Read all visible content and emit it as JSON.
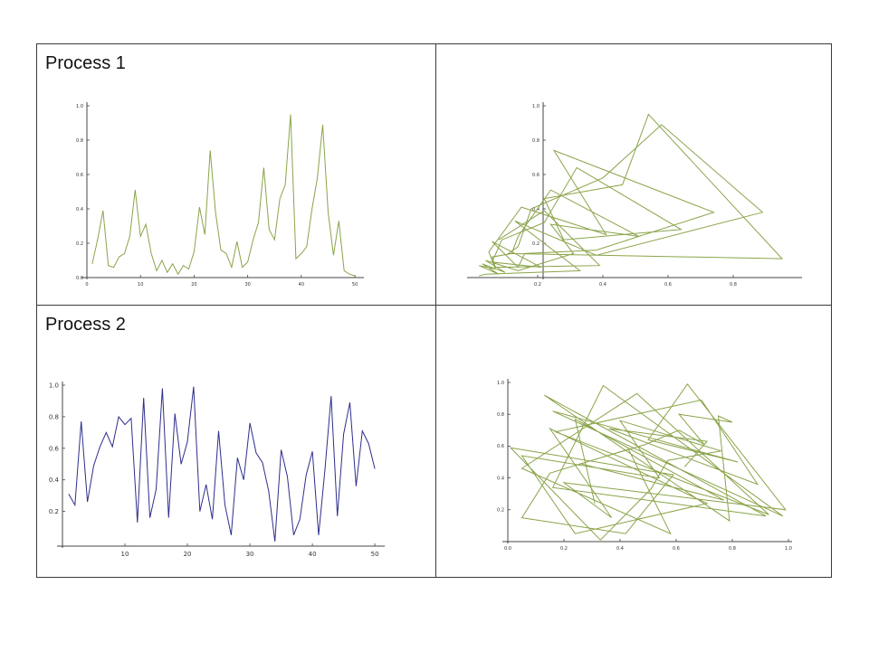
{
  "panels": [
    {
      "label": "Process 1"
    },
    {
      "label": ""
    },
    {
      "label": "Process 2"
    },
    {
      "label": ""
    }
  ],
  "chart_data": [
    {
      "type": "line",
      "title": "Process 1",
      "color": "#8aa44a",
      "xlim": [
        0,
        51
      ],
      "ylim": [
        0,
        1
      ],
      "xticks": [
        0,
        10,
        20,
        30,
        40,
        50
      ],
      "yticks": [
        0.0,
        0.2,
        0.4,
        0.6,
        0.8,
        1.0
      ],
      "xtick_labels": [
        "0",
        "10",
        "20",
        "30",
        "40",
        "50"
      ],
      "ytick_labels": [
        "0.0",
        "0.2",
        "0.4",
        "0.6",
        "0.8",
        "1.0"
      ],
      "x": [
        1,
        2,
        3,
        4,
        5,
        6,
        7,
        8,
        9,
        10,
        11,
        12,
        13,
        14,
        15,
        16,
        17,
        18,
        19,
        20,
        21,
        22,
        23,
        24,
        25,
        26,
        27,
        28,
        29,
        30,
        31,
        32,
        33,
        34,
        35,
        36,
        37,
        38,
        39,
        40,
        41,
        42,
        43,
        44,
        45,
        46,
        47,
        48,
        49,
        50
      ],
      "values": [
        0.08,
        0.22,
        0.39,
        0.07,
        0.06,
        0.12,
        0.14,
        0.24,
        0.51,
        0.24,
        0.31,
        0.14,
        0.04,
        0.1,
        0.03,
        0.08,
        0.02,
        0.07,
        0.05,
        0.15,
        0.41,
        0.25,
        0.74,
        0.38,
        0.16,
        0.14,
        0.06,
        0.21,
        0.06,
        0.09,
        0.22,
        0.32,
        0.64,
        0.28,
        0.22,
        0.46,
        0.54,
        0.95,
        0.11,
        0.14,
        0.18,
        0.4,
        0.58,
        0.89,
        0.38,
        0.13,
        0.33,
        0.04,
        0.02,
        0.01
      ],
      "grid": false
    },
    {
      "type": "line",
      "title": "",
      "color": "#8aa44a",
      "xlim": [
        0.0,
        1.0
      ],
      "ylim": [
        0,
        1
      ],
      "xticks": [
        0.2,
        0.4,
        0.6,
        0.8
      ],
      "yticks": [
        0.2,
        0.4,
        0.6,
        0.8,
        1.0
      ],
      "xtick_labels": [
        "0.2",
        "0.4",
        "0.6",
        "0.8"
      ],
      "ytick_labels": [
        "0.2",
        "0.4",
        "0.6",
        "0.8",
        "1.0"
      ],
      "x": [
        0.08,
        0.22,
        0.39,
        0.07,
        0.06,
        0.12,
        0.14,
        0.24,
        0.51,
        0.24,
        0.31,
        0.14,
        0.04,
        0.1,
        0.03,
        0.08,
        0.02,
        0.07,
        0.05,
        0.15,
        0.41,
        0.25,
        0.74,
        0.38,
        0.16,
        0.14,
        0.06,
        0.21,
        0.06,
        0.09,
        0.22,
        0.32,
        0.64,
        0.28,
        0.22,
        0.46,
        0.54,
        0.95,
        0.11,
        0.14,
        0.18,
        0.4,
        0.58,
        0.89,
        0.38,
        0.13,
        0.33,
        0.04,
        0.02
      ],
      "values": [
        0.22,
        0.39,
        0.07,
        0.06,
        0.12,
        0.14,
        0.24,
        0.51,
        0.24,
        0.31,
        0.14,
        0.04,
        0.1,
        0.03,
        0.08,
        0.02,
        0.07,
        0.05,
        0.15,
        0.41,
        0.25,
        0.74,
        0.38,
        0.16,
        0.14,
        0.06,
        0.21,
        0.06,
        0.09,
        0.22,
        0.32,
        0.64,
        0.28,
        0.22,
        0.46,
        0.54,
        0.95,
        0.11,
        0.14,
        0.18,
        0.4,
        0.58,
        0.89,
        0.38,
        0.13,
        0.33,
        0.04,
        0.02,
        0.01
      ],
      "grid": false
    },
    {
      "type": "line",
      "title": "Process 2",
      "color": "#2e2e8c",
      "xlim": [
        0,
        51
      ],
      "ylim": [
        -0.02,
        1.0
      ],
      "xticks": [
        10,
        20,
        30,
        40,
        50
      ],
      "yticks": [
        0.2,
        0.4,
        0.6,
        0.8,
        1.0
      ],
      "xtick_labels": [
        "10",
        "20",
        "30",
        "40",
        "50"
      ],
      "ytick_labels": [
        "0.2",
        "0.4",
        "0.6",
        "0.8",
        "1.0"
      ],
      "x": [
        1,
        2,
        3,
        4,
        5,
        6,
        7,
        8,
        9,
        10,
        11,
        12,
        13,
        14,
        15,
        16,
        17,
        18,
        19,
        20,
        21,
        22,
        23,
        24,
        25,
        26,
        27,
        28,
        29,
        30,
        31,
        32,
        33,
        34,
        35,
        36,
        37,
        38,
        39,
        40,
        41,
        42,
        43,
        44,
        45,
        46,
        47,
        48,
        49,
        50
      ],
      "values": [
        0.31,
        0.24,
        0.77,
        0.26,
        0.49,
        0.61,
        0.7,
        0.61,
        0.8,
        0.75,
        0.79,
        0.13,
        0.92,
        0.16,
        0.34,
        0.98,
        0.16,
        0.82,
        0.5,
        0.64,
        0.99,
        0.2,
        0.37,
        0.15,
        0.71,
        0.24,
        0.05,
        0.54,
        0.4,
        0.76,
        0.57,
        0.51,
        0.33,
        0.01,
        0.59,
        0.42,
        0.05,
        0.15,
        0.43,
        0.58,
        0.05,
        0.46,
        0.93,
        0.17,
        0.69,
        0.89,
        0.36,
        0.71,
        0.63,
        0.47
      ],
      "grid": false
    },
    {
      "type": "line",
      "title": "",
      "color": "#8aa44a",
      "xlim": [
        0.0,
        1.0
      ],
      "ylim": [
        0,
        1.0
      ],
      "xticks": [
        0.0,
        0.2,
        0.4,
        0.6,
        0.8,
        1.0
      ],
      "yticks": [
        0.2,
        0.4,
        0.6,
        0.8,
        1.0
      ],
      "xtick_labels": [
        "0.0",
        "0.2",
        "0.4",
        "0.6",
        "0.8",
        "1.0"
      ],
      "ytick_labels": [
        "0.2",
        "0.4",
        "0.6",
        "0.8",
        "1.0"
      ],
      "x": [
        0.31,
        0.24,
        0.77,
        0.26,
        0.49,
        0.61,
        0.7,
        0.61,
        0.8,
        0.75,
        0.79,
        0.13,
        0.92,
        0.16,
        0.34,
        0.98,
        0.16,
        0.82,
        0.5,
        0.64,
        0.99,
        0.2,
        0.37,
        0.15,
        0.71,
        0.24,
        0.05,
        0.54,
        0.4,
        0.76,
        0.57,
        0.51,
        0.33,
        0.01,
        0.59,
        0.42,
        0.05,
        0.15,
        0.43,
        0.58,
        0.05,
        0.46,
        0.93,
        0.17,
        0.69,
        0.89,
        0.36,
        0.71,
        0.63
      ],
      "values": [
        0.24,
        0.77,
        0.26,
        0.49,
        0.61,
        0.7,
        0.61,
        0.8,
        0.75,
        0.79,
        0.13,
        0.92,
        0.16,
        0.34,
        0.98,
        0.16,
        0.82,
        0.5,
        0.64,
        0.99,
        0.2,
        0.37,
        0.15,
        0.71,
        0.24,
        0.05,
        0.54,
        0.4,
        0.76,
        0.57,
        0.51,
        0.33,
        0.01,
        0.59,
        0.42,
        0.05,
        0.15,
        0.43,
        0.58,
        0.05,
        0.46,
        0.93,
        0.17,
        0.69,
        0.89,
        0.36,
        0.71,
        0.63,
        0.47
      ],
      "grid": false
    }
  ]
}
